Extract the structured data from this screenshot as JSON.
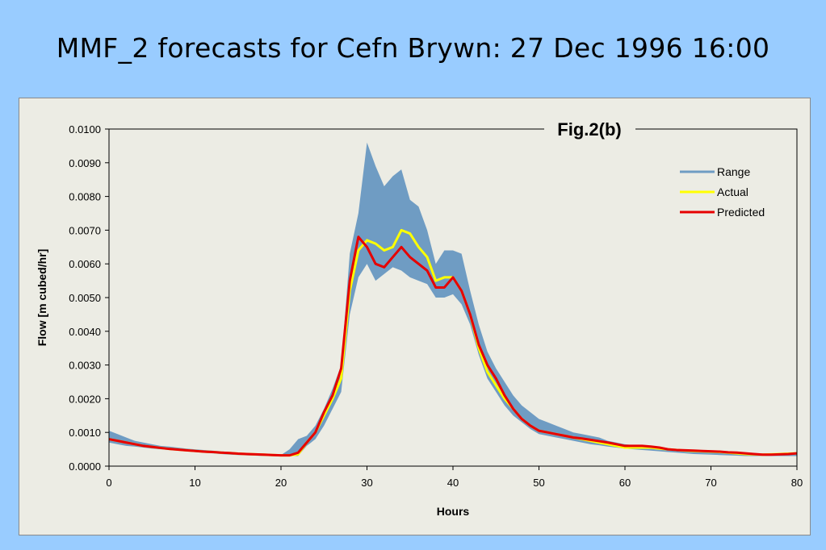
{
  "slide": {
    "title": "MMF_2 forecasts for Cefn Brywn: 27 Dec 1996 16:00"
  },
  "chart_data": {
    "type": "line",
    "title": "Fig.2(b)",
    "xlabel": "Hours",
    "ylabel": "Flow [m cubed/hr]",
    "xlim": [
      0,
      80
    ],
    "ylim": [
      0,
      0.01
    ],
    "x_ticks": [
      "0",
      "10",
      "20",
      "30",
      "40",
      "50",
      "60",
      "70",
      "80"
    ],
    "y_ticks": [
      "0.0000",
      "0.0010",
      "0.0020",
      "0.0030",
      "0.0040",
      "0.0050",
      "0.0060",
      "0.0070",
      "0.0080",
      "0.0090",
      "0.0100"
    ],
    "grid": false,
    "legend_position": "top-right",
    "colors": {
      "range": "#6f9cc3",
      "actual": "#ffff00",
      "predicted": "#e60000"
    },
    "x": [
      0,
      1,
      2,
      3,
      4,
      5,
      6,
      7,
      8,
      9,
      10,
      11,
      12,
      13,
      14,
      15,
      16,
      17,
      18,
      19,
      20,
      21,
      22,
      23,
      24,
      25,
      26,
      27,
      28,
      29,
      30,
      31,
      32,
      33,
      34,
      35,
      36,
      37,
      38,
      39,
      40,
      41,
      42,
      43,
      44,
      45,
      46,
      47,
      48,
      49,
      50,
      51,
      52,
      53,
      54,
      55,
      56,
      57,
      58,
      59,
      60,
      61,
      62,
      63,
      64,
      65,
      66,
      67,
      68,
      69,
      70,
      71,
      72,
      73,
      74,
      75,
      76,
      77,
      78,
      79,
      80
    ],
    "series": [
      {
        "name": "Range",
        "upper": [
          0.00105,
          0.00095,
          0.00085,
          0.00075,
          0.0007,
          0.00065,
          0.0006,
          0.00058,
          0.00055,
          0.00052,
          0.0005,
          0.00048,
          0.00046,
          0.00044,
          0.00042,
          0.0004,
          0.00038,
          0.00036,
          0.00035,
          0.00034,
          0.00033,
          0.0005,
          0.0008,
          0.0009,
          0.0012,
          0.0017,
          0.0023,
          0.003,
          0.0063,
          0.0075,
          0.0096,
          0.0089,
          0.0083,
          0.0086,
          0.0088,
          0.0079,
          0.0077,
          0.007,
          0.006,
          0.0064,
          0.0064,
          0.0063,
          0.0052,
          0.0042,
          0.0034,
          0.0029,
          0.0025,
          0.0021,
          0.0018,
          0.0016,
          0.0014,
          0.0013,
          0.0012,
          0.0011,
          0.001,
          0.00095,
          0.0009,
          0.00085,
          0.00075,
          0.0007,
          0.00065,
          0.00062,
          0.0006,
          0.00058,
          0.00055,
          0.00052,
          0.0005,
          0.00048,
          0.00046,
          0.00044,
          0.00042,
          0.0004,
          0.00038,
          0.00038,
          0.00037,
          0.00036,
          0.00036,
          0.00036,
          0.00037,
          0.00038,
          0.0004
        ],
        "lower": [
          0.0007,
          0.00065,
          0.0006,
          0.00058,
          0.00055,
          0.00052,
          0.0005,
          0.00048,
          0.00046,
          0.00044,
          0.00042,
          0.0004,
          0.00038,
          0.00036,
          0.00034,
          0.00033,
          0.00032,
          0.00031,
          0.0003,
          0.0003,
          0.0003,
          0.0003,
          0.0003,
          0.0006,
          0.0008,
          0.0012,
          0.0017,
          0.0022,
          0.0045,
          0.0056,
          0.006,
          0.0055,
          0.0057,
          0.0059,
          0.0058,
          0.0056,
          0.0055,
          0.0054,
          0.005,
          0.005,
          0.0051,
          0.0048,
          0.0042,
          0.0033,
          0.0026,
          0.0022,
          0.0018,
          0.0015,
          0.0013,
          0.0011,
          0.00095,
          0.0009,
          0.00085,
          0.0008,
          0.00075,
          0.0007,
          0.00065,
          0.00062,
          0.00058,
          0.00055,
          0.00052,
          0.0005,
          0.00048,
          0.00046,
          0.00044,
          0.00042,
          0.0004,
          0.00038,
          0.00036,
          0.00035,
          0.00034,
          0.00033,
          0.00032,
          0.00031,
          0.0003,
          0.0003,
          0.0003,
          0.0003,
          0.0003,
          0.0003,
          0.0003
        ]
      },
      {
        "name": "Actual",
        "values": [
          0.0008,
          0.00075,
          0.0007,
          0.00065,
          0.0006,
          0.00057,
          0.00054,
          0.00051,
          0.00049,
          0.00047,
          0.00045,
          0.00043,
          0.00042,
          0.0004,
          0.00039,
          0.00037,
          0.00036,
          0.00035,
          0.00034,
          0.00033,
          0.00032,
          0.00032,
          0.00035,
          0.0007,
          0.001,
          0.0015,
          0.002,
          0.0026,
          0.0052,
          0.0064,
          0.0067,
          0.0066,
          0.0064,
          0.0065,
          0.007,
          0.0069,
          0.0065,
          0.0062,
          0.0055,
          0.0056,
          0.0056,
          0.0052,
          0.0045,
          0.0035,
          0.0028,
          0.0024,
          0.002,
          0.0017,
          0.0014,
          0.0012,
          0.00105,
          0.001,
          0.00095,
          0.0009,
          0.00085,
          0.0008,
          0.00075,
          0.0007,
          0.00065,
          0.0006,
          0.00055,
          0.00055,
          0.00055,
          0.00055,
          0.00052,
          0.0005,
          0.00048,
          0.00046,
          0.00045,
          0.00044,
          0.00043,
          0.00042,
          0.0004,
          0.00038,
          0.00036,
          0.00035,
          0.00034,
          0.00035,
          0.00036,
          0.00037,
          0.00038
        ]
      },
      {
        "name": "Predicted",
        "values": [
          0.0008,
          0.00075,
          0.0007,
          0.00065,
          0.0006,
          0.00057,
          0.00054,
          0.00051,
          0.00049,
          0.00047,
          0.00045,
          0.00043,
          0.00042,
          0.0004,
          0.00039,
          0.00037,
          0.00036,
          0.00035,
          0.00034,
          0.00033,
          0.00032,
          0.00032,
          0.0004,
          0.0007,
          0.001,
          0.0016,
          0.0021,
          0.0029,
          0.0055,
          0.0068,
          0.0065,
          0.006,
          0.0059,
          0.0062,
          0.0065,
          0.0062,
          0.006,
          0.0058,
          0.0053,
          0.0053,
          0.0056,
          0.0052,
          0.0045,
          0.0036,
          0.003,
          0.0026,
          0.0021,
          0.0017,
          0.0014,
          0.0012,
          0.00105,
          0.001,
          0.00095,
          0.0009,
          0.00085,
          0.00082,
          0.00078,
          0.00074,
          0.0007,
          0.00065,
          0.0006,
          0.0006,
          0.0006,
          0.00058,
          0.00055,
          0.0005,
          0.00048,
          0.00047,
          0.00046,
          0.00045,
          0.00044,
          0.00043,
          0.00041,
          0.0004,
          0.00038,
          0.00036,
          0.00034,
          0.00034,
          0.00035,
          0.00036,
          0.00038
        ]
      }
    ]
  }
}
